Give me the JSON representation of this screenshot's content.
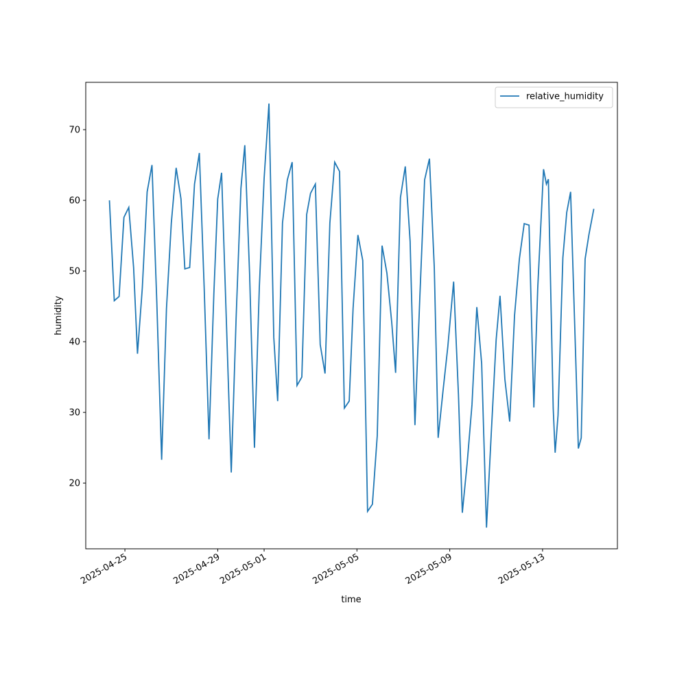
{
  "chart_data": {
    "type": "line",
    "x_label": "time",
    "y_label": "humidity",
    "x": [
      "2025-04-24T08:00",
      "2025-04-24T13:00",
      "2025-04-24T18:00",
      "2025-04-24T23:00",
      "2025-04-25T04:00",
      "2025-04-25T09:00",
      "2025-04-25T13:00",
      "2025-04-25T18:00",
      "2025-04-25T23:00",
      "2025-04-26T04:00",
      "2025-04-26T09:00",
      "2025-04-26T14:00",
      "2025-04-26T19:00",
      "2025-04-27T00:00",
      "2025-04-27T05:00",
      "2025-04-27T10:00",
      "2025-04-27T14:00",
      "2025-04-27T19:00",
      "2025-04-28T00:00",
      "2025-04-28T05:00",
      "2025-04-28T10:00",
      "2025-04-28T15:00",
      "2025-04-28T20:00",
      "2025-04-29T00:00",
      "2025-04-29T04:00",
      "2025-04-29T09:00",
      "2025-04-29T14:00",
      "2025-04-29T19:00",
      "2025-04-30T00:00",
      "2025-04-30T04:00",
      "2025-04-30T09:00",
      "2025-04-30T14:00",
      "2025-04-30T19:00",
      "2025-05-01T00:00",
      "2025-05-01T05:00",
      "2025-05-01T10:00",
      "2025-05-01T14:00",
      "2025-05-01T19:00",
      "2025-05-02T00:00",
      "2025-05-02T05:00",
      "2025-05-02T10:00",
      "2025-05-02T15:00",
      "2025-05-02T20:00",
      "2025-05-03T00:00",
      "2025-05-03T05:00",
      "2025-05-03T10:00",
      "2025-05-03T15:00",
      "2025-05-03T20:00",
      "2025-05-04T01:00",
      "2025-05-04T06:00",
      "2025-05-04T11:00",
      "2025-05-04T16:00",
      "2025-05-04T20:00",
      "2025-05-05T01:00",
      "2025-05-05T06:00",
      "2025-05-05T11:00",
      "2025-05-05T16:00",
      "2025-05-05T21:00",
      "2025-05-06T02:00",
      "2025-05-06T07:00",
      "2025-05-06T12:00",
      "2025-05-06T16:00",
      "2025-05-06T21:00",
      "2025-05-07T02:00",
      "2025-05-07T07:00",
      "2025-05-07T12:00",
      "2025-05-07T17:00",
      "2025-05-07T22:00",
      "2025-05-08T03:00",
      "2025-05-08T08:00",
      "2025-05-08T12:00",
      "2025-05-08T17:00",
      "2025-05-08T22:00",
      "2025-05-09T04:00",
      "2025-05-09T09:00",
      "2025-05-09T13:00",
      "2025-05-09T18:00",
      "2025-05-09T23:00",
      "2025-05-10T04:00",
      "2025-05-10T09:00",
      "2025-05-10T14:00",
      "2025-05-10T19:00",
      "2025-05-11T00:00",
      "2025-05-11T04:00",
      "2025-05-11T09:00",
      "2025-05-11T14:00",
      "2025-05-11T19:00",
      "2025-05-12T00:00",
      "2025-05-12T05:00",
      "2025-05-12T10:00",
      "2025-05-12T15:00",
      "2025-05-12T19:00",
      "2025-05-13T01:00",
      "2025-05-13T04:00",
      "2025-05-13T06:00",
      "2025-05-13T11:00",
      "2025-05-13T13:00",
      "2025-05-13T16:00",
      "2025-05-13T21:00",
      "2025-05-14T01:00",
      "2025-05-14T05:00",
      "2025-05-14T11:00",
      "2025-05-14T13:00",
      "2025-05-14T16:00",
      "2025-05-14T20:00",
      "2025-05-15T00:00",
      "2025-05-15T05:00"
    ],
    "series": [
      {
        "name": "relative_humidity",
        "color": "#1f77b4",
        "values": [
          60.0,
          45.8,
          46.4,
          57.6,
          59.0,
          50.5,
          38.3,
          47.6,
          61.2,
          65.0,
          45.6,
          23.3,
          44.7,
          56.8,
          64.6,
          60.2,
          50.3,
          50.5,
          62.3,
          66.7,
          47.6,
          26.2,
          46.8,
          60.2,
          63.9,
          42.7,
          21.5,
          43.2,
          61.7,
          67.8,
          49.5,
          25.0,
          47.6,
          63.1,
          73.7,
          40.6,
          31.6,
          56.8,
          62.9,
          65.4,
          33.8,
          35.0,
          58.0,
          61.0,
          62.3,
          39.6,
          35.5,
          56.8,
          65.4,
          64.1,
          30.6,
          31.6,
          44.7,
          55.1,
          51.5,
          16.0,
          17.0,
          26.7,
          53.6,
          49.7,
          42.7,
          35.6,
          60.4,
          64.8,
          54.2,
          28.2,
          46.1,
          62.9,
          65.9,
          50.5,
          26.4,
          33.0,
          39.3,
          48.5,
          32.5,
          15.8,
          22.8,
          31.1,
          44.9,
          36.9,
          13.7,
          27.2,
          40.3,
          46.5,
          34.7,
          28.7,
          43.7,
          51.7,
          56.7,
          56.5,
          30.7,
          47.6,
          64.4,
          62.3,
          63.0,
          30.6,
          24.3,
          29.6,
          51.9,
          58.3,
          61.2,
          34.5,
          24.9,
          26.4,
          51.7,
          55.2,
          58.8
        ]
      }
    ],
    "xlim": [
      "2025-04-23T07:30",
      "2025-05-16T05:24"
    ],
    "xticks": [
      "2025-04-25",
      "2025-04-29",
      "2025-05-01",
      "2025-05-05",
      "2025-05-09",
      "2025-05-13"
    ],
    "ylim": [
      10.7,
      76.7
    ],
    "yticks": [
      20,
      30,
      40,
      50,
      60,
      70
    ],
    "legend": "upper right"
  }
}
